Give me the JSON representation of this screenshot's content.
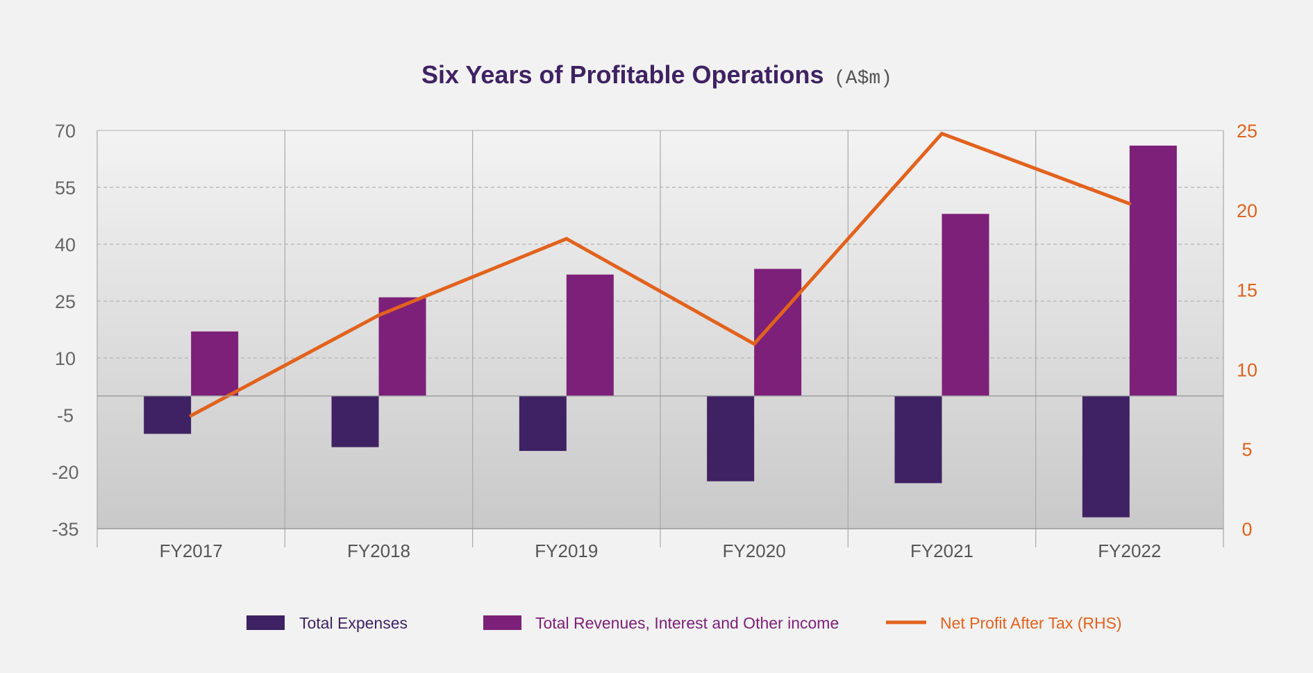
{
  "chart_data": {
    "type": "bar",
    "title": "Six Years of Profitable Operations",
    "title_unit": "(A$m)",
    "categories": [
      "FY2017",
      "FY2018",
      "FY2019",
      "FY2020",
      "FY2021",
      "FY2022"
    ],
    "series": [
      {
        "name": "Total Expenses",
        "type": "bar",
        "axis": "left",
        "color": "#3f2263",
        "values": [
          -10,
          -13.5,
          -14.5,
          -22.5,
          -23,
          -32
        ]
      },
      {
        "name": "Total Revenues, Interest and Other income",
        "type": "bar",
        "axis": "left",
        "color": "#7d2079",
        "values": [
          17,
          26,
          32,
          33.5,
          48,
          66
        ]
      },
      {
        "name": "Net Profit After Tax (RHS)",
        "type": "line",
        "axis": "right",
        "color": "#e2621d",
        "values": [
          7.1,
          13.4,
          18.2,
          11.6,
          24.8,
          20.4
        ]
      }
    ],
    "y_left": {
      "min": -35,
      "max": 70,
      "ticks": [
        70,
        55,
        40,
        25,
        10,
        -5,
        -20,
        -35
      ]
    },
    "y_right": {
      "min": 0,
      "max": 25,
      "ticks": [
        25,
        20,
        15,
        10,
        5,
        0
      ]
    },
    "legend_position": "bottom-center",
    "colors": {
      "title": "#3f2263",
      "unit": "#555555",
      "left_ticks": "#666666",
      "right_ticks": "#e2621d",
      "category_labels": "#555555"
    }
  }
}
